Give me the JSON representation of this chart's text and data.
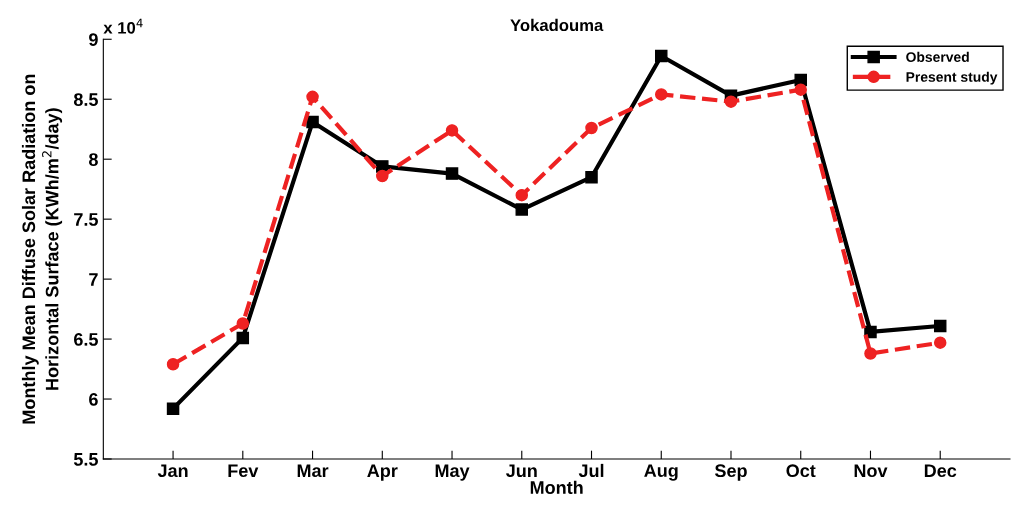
{
  "chart_data": {
    "type": "line",
    "title": "Yokadouma",
    "xlabel": "Month",
    "ylabel": "Monthly Mean Diffuse Solar Radiation on\nHorizontal Surface (KWh/m$^{2}$/day)",
    "annotations": [
      "x 10$^{4}$"
    ],
    "categories": [
      "Jan",
      "Fev",
      "Mar",
      "Apr",
      "May",
      "Jun",
      "Jul",
      "Aug",
      "Sep",
      "Oct",
      "Nov",
      "Dec"
    ],
    "series": [
      {
        "name": "Observed",
        "color": "#000000",
        "marker": "square",
        "line_style": "solid",
        "values": [
          5.92,
          6.51,
          8.31,
          7.94,
          7.88,
          7.58,
          7.85,
          8.86,
          8.53,
          8.66,
          6.56,
          6.61
        ]
      },
      {
        "name": "Present study",
        "color": "#ee2222",
        "marker": "circle",
        "line_style": "dashed",
        "values": [
          6.29,
          6.63,
          8.52,
          7.86,
          8.24,
          7.7,
          8.26,
          8.54,
          8.48,
          8.58,
          6.38,
          6.47
        ]
      }
    ],
    "ylim": [
      5.5,
      9
    ],
    "yticks": [
      5.5,
      6,
      6.5,
      7,
      7.5,
      8,
      8.5,
      9
    ],
    "grid": false,
    "legend": "top right"
  }
}
